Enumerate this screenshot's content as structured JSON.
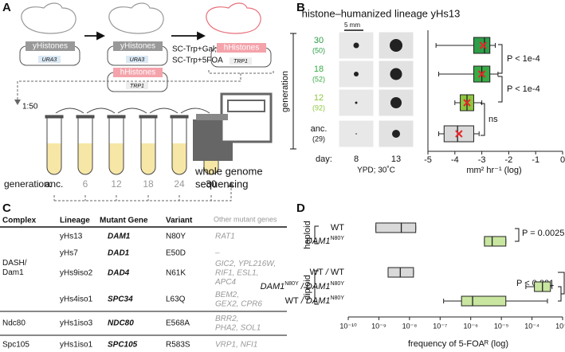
{
  "panel_labels": [
    "A",
    "B",
    "C",
    "D"
  ],
  "panel_a": {
    "plasmid_y": "yHistones",
    "marker_y": "URA3",
    "plasmid_h": "hHistones",
    "marker_h": "TRP1",
    "media_1": "SC-Trp+Gal;",
    "media_2": "SC-Trp+5FOA",
    "dilution": "1:50",
    "generation_label": "generation:",
    "generations": [
      "anc.",
      "6",
      "12",
      "18",
      "24",
      "30"
    ],
    "sequencing_1": "whole genome",
    "sequencing_2": "sequencing"
  },
  "panel_b_images": {
    "scale": "5 mm",
    "y_label": "generation",
    "day_label": "day:",
    "days": [
      "8",
      "13"
    ],
    "condition": "YPD; 30˚C"
  },
  "chart_data": [
    {
      "type": "boxplot",
      "title": "histone–humanized lineage yHs13",
      "categories": [
        "30",
        "18",
        "12",
        "anc."
      ],
      "counts": [
        "(50)",
        "(52)",
        "(92)",
        "(29)"
      ],
      "label_colors": [
        "#2e9e48",
        "#3aaa46",
        "#8dc63f",
        "#111111"
      ],
      "colors": [
        "#2e9e48",
        "#3aaa46",
        "#8dc63f",
        "#d9d9d9"
      ],
      "mean_color": "#e8262a",
      "boxes": [
        {
          "low": -4.7,
          "q1": -3.3,
          "median": -2.9,
          "q3": -2.7,
          "high": -2.5,
          "mean": -2.95
        },
        {
          "low": -4.6,
          "q1": -3.3,
          "median": -3.0,
          "q3": -2.7,
          "high": -2.4,
          "mean": -3.0
        },
        {
          "low": -4.0,
          "q1": -3.8,
          "median": -3.55,
          "q3": -3.3,
          "high": -3.0,
          "mean": -3.55
        },
        {
          "low": -4.6,
          "q1": -4.4,
          "median": -3.9,
          "q3": -3.3,
          "high": -3.1,
          "mean": -3.85
        }
      ],
      "xlim": [
        -5,
        0
      ],
      "xticks": [
        -5,
        -4,
        -3,
        -2,
        -1,
        0
      ],
      "xlabel": "mm² hr⁻¹ (log)",
      "annotations": [
        "P < 1e-4",
        "P < 1e-4",
        "ns"
      ]
    },
    {
      "type": "boxplot",
      "log": true,
      "groups": [
        "haploid",
        "diploid"
      ],
      "row_labels": [
        [
          {
            "text": "WT",
            "sup": false
          }
        ],
        [
          {
            "text": "DAM1",
            "sup": false
          },
          {
            "text": "N80Y",
            "sup": true
          }
        ],
        [
          {
            "text": "WT",
            "sup": false
          },
          {
            "text": " / ",
            "sup": false
          },
          {
            "text": "WT",
            "sup": false
          }
        ],
        [
          {
            "text": "DAM1",
            "sup": false
          },
          {
            "text": "N80Y",
            "sup": true
          },
          {
            "text": " / ",
            "sup": false
          },
          {
            "text": "DAM1",
            "sup": false
          },
          {
            "text": "N80Y",
            "sup": true
          }
        ],
        [
          {
            "text": "WT",
            "sup": false
          },
          {
            "text": " / ",
            "sup": false
          },
          {
            "text": "DAM1",
            "sup": false
          },
          {
            "text": "N80Y",
            "sup": true
          }
        ]
      ],
      "colors": [
        "#d9d9d9",
        "#c8e6a0",
        "#d9d9d9",
        "#c8e6a0",
        "#c8e6a0"
      ],
      "boxes": [
        {
          "low": 8e-10,
          "q1": 8e-10,
          "median": 5.4e-09,
          "q3": 1.6e-08,
          "high": 1.6e-08
        },
        {
          "low": 2.8e-06,
          "q1": 2.8e-06,
          "median": 5e-06,
          "q3": 1.4e-05,
          "high": 1.4e-05
        },
        {
          "low": 2e-09,
          "q1": 2e-09,
          "median": 5e-09,
          "q3": 1.35e-08,
          "high": 1.35e-08
        },
        {
          "low": 6.3e-05,
          "q1": 0.00012,
          "median": 0.00022,
          "q3": 0.0004,
          "high": 0.00045
        },
        {
          "low": 1.3e-07,
          "q1": 5e-07,
          "median": 1.15e-06,
          "q3": 1.4e-05,
          "high": 0.00032
        }
      ],
      "xlim": [
        1e-10,
        0.001
      ],
      "xticks": [
        {
          "value": 1e-10,
          "label": "10⁻¹⁰"
        },
        {
          "value": 1e-09,
          "label": "10⁻⁹"
        },
        {
          "value": 1e-08,
          "label": "10⁻⁸"
        },
        {
          "value": 1e-07,
          "label": "10⁻⁷"
        },
        {
          "value": 1e-06,
          "label": "10⁻⁶"
        },
        {
          "value": 1e-05,
          "label": "10⁻⁵"
        },
        {
          "value": 0.0001,
          "label": "10⁻⁴"
        },
        {
          "value": 0.001,
          "label": "10⁻³"
        }
      ],
      "xlabel": "frequency of 5-FOAᴿ (log)",
      "annotations": [
        "P = 0.0025",
        "P < 0.001"
      ]
    }
  ],
  "table": {
    "headers": [
      "Complex",
      "Lineage",
      "Mutant Gene",
      "Variant",
      "Other mutant genes"
    ],
    "groups": [
      {
        "complex": [
          "DASH/",
          "Dam1"
        ],
        "rows": [
          {
            "lineage": "yHs13",
            "gene": "DAM1",
            "variant": "N80Y",
            "others": [
              "RAT1"
            ]
          },
          {
            "lineage": "yHs7",
            "gene": "DAD1",
            "variant": "E50D",
            "others": [
              "–"
            ]
          },
          {
            "lineage": "yHs9iso2",
            "gene": "DAD4",
            "variant": "N61K",
            "others": [
              "GIC2, YPL216W,",
              "RIF1, ESL1,",
              "APC4"
            ]
          },
          {
            "lineage": "yHs4iso1",
            "gene": "SPC34",
            "variant": "L63Q",
            "others": [
              "BEM2,",
              "GEX2, CPR6"
            ]
          }
        ]
      },
      {
        "complex": [
          "Ndc80"
        ],
        "rows": [
          {
            "lineage": "yHs1iso3",
            "gene": "NDC80",
            "variant": "E568A",
            "others": [
              "BRR2,",
              "PHA2, SOL1"
            ]
          }
        ]
      },
      {
        "complex": [
          "Spc105"
        ],
        "rows": [
          {
            "lineage": "yHs1iso1",
            "gene": "SPC105",
            "variant": "R583S",
            "others": [
              "VRP1, NFI1"
            ]
          }
        ]
      }
    ]
  }
}
